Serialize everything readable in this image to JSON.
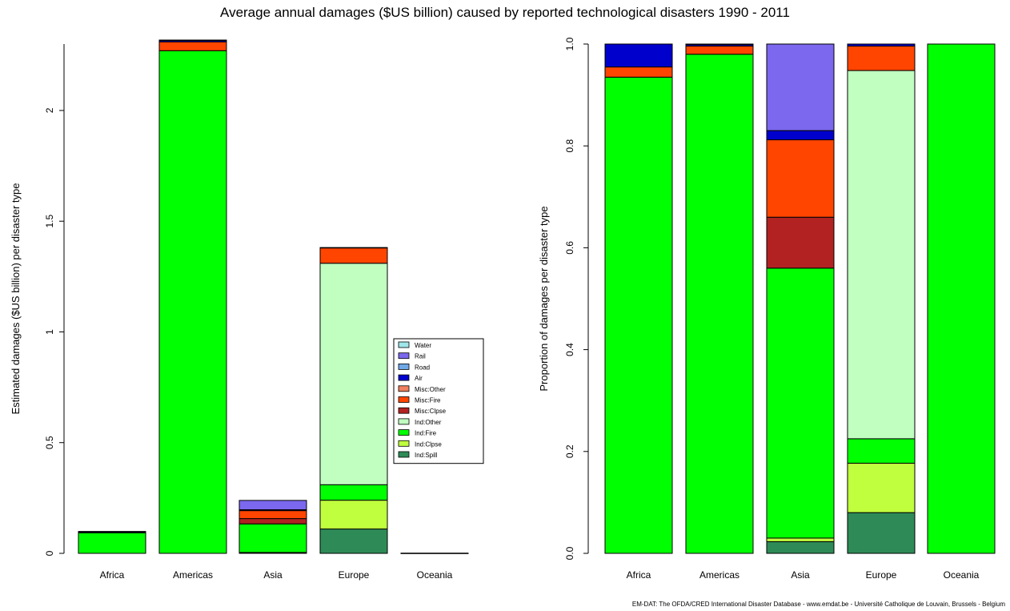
{
  "title": "Average annual damages ($US billion) caused by reported technological disasters 1990 - 2011",
  "footer": "EM-DAT: The OFDA/CRED International Disaster Database - www.emdat.be - Université Catholique de Louvain, Brussels - Belgium",
  "colors": {
    "Water": "#9fe6ea",
    "Rail": "#7b68ee",
    "Road": "#6fa8e8",
    "Air": "#0000cd",
    "Misc:Other": "#f08060",
    "Misc:Fire": "#ff4500",
    "Misc:Clpse": "#b22222",
    "Ind:Other": "#c1ffc1",
    "Ind:Fire": "#00ff00",
    "Ind:Clpse": "#c0ff3e",
    "Ind:Spill": "#2e8b57"
  },
  "chart_data": [
    {
      "type": "bar",
      "stacked": true,
      "ylabel": "Estimated damages ($US billion) per disaster type",
      "ylim": [
        0,
        2.3
      ],
      "yticks": [
        "0",
        "0.5",
        "1",
        "1.5",
        "2"
      ],
      "categories": [
        "Africa",
        "Americas",
        "Asia",
        "Europe",
        "Oceania"
      ],
      "legend": {
        "position": "right of Europe bar",
        "entries": [
          "Water",
          "Rail",
          "Road",
          "Air",
          "Misc:Other",
          "Misc:Fire",
          "Misc:Clpse",
          "Ind:Other",
          "Ind:Fire",
          "Ind:Clpse",
          "Ind:Spill"
        ]
      },
      "series": [
        {
          "name": "Ind:Spill",
          "values": [
            0,
            0,
            0.003,
            0.11,
            0
          ]
        },
        {
          "name": "Ind:Clpse",
          "values": [
            0,
            0,
            0.001,
            0.13,
            0
          ]
        },
        {
          "name": "Ind:Fire",
          "values": [
            0.093,
            2.27,
            0.129,
            0.07,
            0.001
          ]
        },
        {
          "name": "Ind:Other",
          "values": [
            0,
            0,
            0,
            1.0,
            0
          ]
        },
        {
          "name": "Misc:Clpse",
          "values": [
            0,
            0,
            0.024,
            0,
            0
          ]
        },
        {
          "name": "Misc:Fire",
          "values": [
            0.002,
            0.04,
            0.036,
            0.07,
            0
          ]
        },
        {
          "name": "Misc:Other",
          "values": [
            0,
            0,
            0,
            0,
            0
          ]
        },
        {
          "name": "Air",
          "values": [
            0.004,
            0.007,
            0.004,
            0.001,
            0
          ]
        },
        {
          "name": "Road",
          "values": [
            0,
            0,
            0,
            0,
            0
          ]
        },
        {
          "name": "Rail",
          "values": [
            0,
            0.001,
            0.042,
            0,
            0
          ]
        },
        {
          "name": "Water",
          "values": [
            0,
            0,
            0,
            0,
            0
          ]
        }
      ]
    },
    {
      "type": "bar",
      "stacked": true,
      "ylabel": "Proportion of damages per disaster type",
      "ylim": [
        0,
        1.0
      ],
      "yticks": [
        "0.0",
        "0.2",
        "0.4",
        "0.6",
        "0.8",
        "1.0"
      ],
      "categories": [
        "Africa",
        "Americas",
        "Asia",
        "Europe",
        "Oceania"
      ],
      "series": [
        {
          "name": "Ind:Spill",
          "values": [
            0,
            0,
            0.023,
            0.08,
            0
          ]
        },
        {
          "name": "Ind:Clpse",
          "values": [
            0,
            0,
            0.007,
            0.097,
            0
          ]
        },
        {
          "name": "Ind:Fire",
          "values": [
            0.935,
            0.98,
            0.53,
            0.048,
            1.0
          ]
        },
        {
          "name": "Ind:Other",
          "values": [
            0,
            0,
            0,
            0.723,
            0
          ]
        },
        {
          "name": "Misc:Clpse",
          "values": [
            0,
            0,
            0.1,
            0,
            0
          ]
        },
        {
          "name": "Misc:Fire",
          "values": [
            0.02,
            0.016,
            0.152,
            0.048,
            0
          ]
        },
        {
          "name": "Misc:Other",
          "values": [
            0,
            0,
            0,
            0,
            0
          ]
        },
        {
          "name": "Air",
          "values": [
            0.045,
            0.003,
            0.018,
            0.004,
            0
          ]
        },
        {
          "name": "Road",
          "values": [
            0,
            0,
            0,
            0,
            0
          ]
        },
        {
          "name": "Rail",
          "values": [
            0,
            0.001,
            0.17,
            0,
            0
          ]
        },
        {
          "name": "Water",
          "values": [
            0,
            0,
            0,
            0,
            0
          ]
        }
      ]
    }
  ]
}
